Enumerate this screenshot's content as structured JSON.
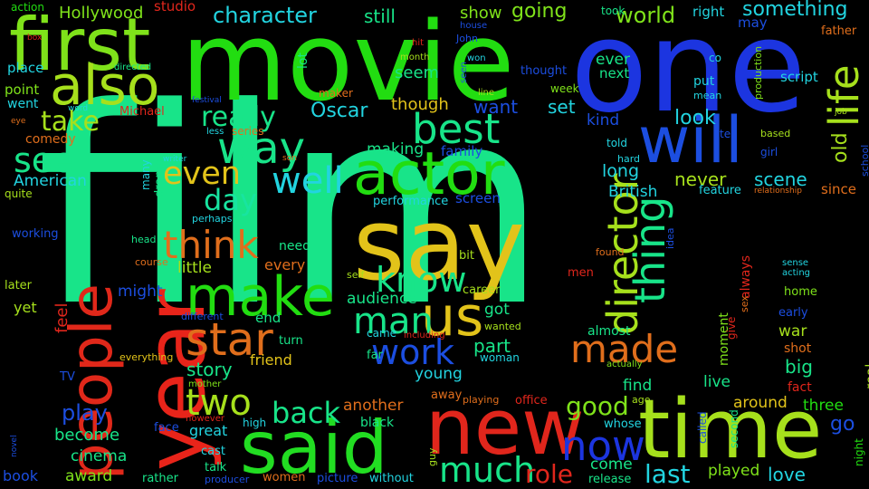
{
  "words": {
    "film": {
      "text": "film",
      "color": "#18e489"
    },
    "movie": {
      "text": "movie",
      "color": "#22dd11"
    },
    "one": {
      "text": "one",
      "color": "#1c35e0"
    },
    "first": {
      "text": "first",
      "color": "#7fe21a"
    },
    "also": {
      "text": "also",
      "color": "#a6e01c"
    },
    "year": {
      "text": "year",
      "color": "#e8241a"
    },
    "people": {
      "text": "people",
      "color": "#e0281a"
    },
    "say": {
      "text": "say",
      "color": "#e2c31a"
    },
    "said": {
      "text": "said",
      "color": "#22dd22"
    },
    "new": {
      "text": "new",
      "color": "#e0261c"
    },
    "time": {
      "text": "time",
      "color": "#a6e01c"
    },
    "will": {
      "text": "will",
      "color": "#1c4ee0"
    },
    "actor": {
      "text": "actor",
      "color": "#22dd11"
    },
    "best": {
      "text": "best",
      "color": "#18e489"
    },
    "make": {
      "text": "make",
      "color": "#22dd11"
    },
    "us": {
      "text": "us",
      "color": "#e2c31a"
    },
    "star": {
      "text": "star",
      "color": "#e06e1c"
    },
    "director": {
      "text": "director",
      "color": "#a6e01c"
    },
    "thing": {
      "text": "thing",
      "color": "#18e489"
    },
    "life": {
      "text": "life",
      "color": "#a6e01c"
    },
    "way": {
      "text": "way",
      "color": "#18e489"
    },
    "well": {
      "text": "well",
      "color": "#22d4e0"
    },
    "even": {
      "text": "even",
      "color": "#e2c31a"
    },
    "day": {
      "text": "day",
      "color": "#18e4a0"
    },
    "think": {
      "text": "think",
      "color": "#e06e1c"
    },
    "know": {
      "text": "know",
      "color": "#18e489"
    },
    "man": {
      "text": "man",
      "color": "#18e489"
    },
    "work": {
      "text": "work",
      "color": "#1c4ee0"
    },
    "made": {
      "text": "made",
      "color": "#e06e1c"
    },
    "two": {
      "text": "two",
      "color": "#a6e01c"
    },
    "back": {
      "text": "back",
      "color": "#18e489"
    },
    "now": {
      "text": "now",
      "color": "#1c35e0"
    },
    "much": {
      "text": "much",
      "color": "#18e489"
    },
    "role": {
      "text": "role",
      "color": "#e0261c"
    },
    "good": {
      "text": "good",
      "color": "#7fe21a"
    },
    "last": {
      "text": "last",
      "color": "#22d4e0"
    },
    "take": {
      "text": "take",
      "color": "#a6e01c"
    },
    "see": {
      "text": "see",
      "color": "#18e489"
    },
    "character": {
      "text": "character",
      "color": "#22d4e0"
    },
    "really": {
      "text": "really",
      "color": "#18e489"
    },
    "world": {
      "text": "world",
      "color": "#7fe21a"
    },
    "something": {
      "text": "something",
      "color": "#22d4e0"
    },
    "going": {
      "text": "going",
      "color": "#7fe21a"
    },
    "show": {
      "text": "show",
      "color": "#7fe21a"
    },
    "still": {
      "text": "still",
      "color": "#18e489"
    },
    "Hollywood": {
      "text": "Hollywood",
      "color": "#7fe21a"
    },
    "studio": {
      "text": "studio",
      "color": "#e0261c"
    },
    "action": {
      "text": "action",
      "color": "#22dd11"
    },
    "right": {
      "text": "right",
      "color": "#22d4e0"
    },
    "took": {
      "text": "took",
      "color": "#18e489"
    },
    "Oscar": {
      "text": "Oscar",
      "color": "#22d4e0"
    },
    "though": {
      "text": "though",
      "color": "#e2c31a"
    },
    "want": {
      "text": "want",
      "color": "#1c4ee0"
    },
    "set": {
      "text": "set",
      "color": "#22d4e0"
    },
    "seem": {
      "text": "seem",
      "color": "#18e489"
    },
    "look": {
      "text": "look",
      "color": "#22d4e0"
    },
    "kind": {
      "text": "kind",
      "color": "#1c4ee0"
    },
    "ever": {
      "text": "ever",
      "color": "#18e489"
    },
    "next": {
      "text": "next",
      "color": "#18e489"
    },
    "script": {
      "text": "script",
      "color": "#22d4e0"
    },
    "old": {
      "text": "old",
      "color": "#a6e01c"
    },
    "never": {
      "text": "never",
      "color": "#a6e01c"
    },
    "scene": {
      "text": "scene",
      "color": "#22d4e0"
    },
    "long": {
      "text": "long",
      "color": "#22d4e0"
    },
    "British": {
      "text": "British",
      "color": "#22d4e0"
    },
    "since": {
      "text": "since",
      "color": "#e06e1c"
    },
    "feature": {
      "text": "feature",
      "color": "#22d4e0"
    },
    "making": {
      "text": "making",
      "color": "#18e489"
    },
    "family": {
      "text": "family",
      "color": "#1c4ee0"
    },
    "performance": {
      "text": "performance",
      "color": "#22d4e0"
    },
    "screen": {
      "text": "screen",
      "color": "#1c4ee0"
    },
    "American": {
      "text": "American",
      "color": "#22d4e0"
    },
    "quite": {
      "text": "quite",
      "color": "#a6e01c"
    },
    "comedy": {
      "text": "comedy",
      "color": "#e06e1c"
    },
    "Michael": {
      "text": "Michael",
      "color": "#e0261c"
    },
    "place": {
      "text": "place",
      "color": "#22d4e0"
    },
    "point": {
      "text": "point",
      "color": "#7fe21a"
    },
    "went": {
      "text": "went",
      "color": "#22d4e0"
    },
    "working": {
      "text": "working",
      "color": "#1c4ee0"
    },
    "later": {
      "text": "later",
      "color": "#a6e01c"
    },
    "yet": {
      "text": "yet",
      "color": "#a6e01c"
    },
    "feel": {
      "text": "feel",
      "color": "#e0261c"
    },
    "TV": {
      "text": "TV",
      "color": "#1c4ee0"
    },
    "play": {
      "text": "play",
      "color": "#1c4ee0"
    },
    "become": {
      "text": "become",
      "color": "#18e489"
    },
    "cinema": {
      "text": "cinema",
      "color": "#18e489"
    },
    "book": {
      "text": "book",
      "color": "#1c4ee0"
    },
    "award": {
      "text": "award",
      "color": "#7fe21a"
    },
    "rather": {
      "text": "rather",
      "color": "#18e489"
    },
    "great": {
      "text": "great",
      "color": "#22d4e0"
    },
    "cast": {
      "text": "cast",
      "color": "#22d4e0"
    },
    "talk": {
      "text": "talk",
      "color": "#18e489"
    },
    "producer": {
      "text": "producer",
      "color": "#1c4ee0"
    },
    "women": {
      "text": "women",
      "color": "#e06e1c"
    },
    "picture": {
      "text": "picture",
      "color": "#1c4ee0"
    },
    "without": {
      "text": "without",
      "color": "#22d4e0"
    },
    "story": {
      "text": "story",
      "color": "#18e489"
    },
    "friend": {
      "text": "friend",
      "color": "#e2c31a"
    },
    "turn": {
      "text": "turn",
      "color": "#18e489"
    },
    "end": {
      "text": "end",
      "color": "#18e489"
    },
    "little": {
      "text": "little",
      "color": "#a6e01c"
    },
    "every": {
      "text": "every",
      "color": "#e06e1c"
    },
    "need": {
      "text": "need",
      "color": "#18e489"
    },
    "might": {
      "text": "might",
      "color": "#1c4ee0"
    },
    "different": {
      "text": "different",
      "color": "#1c4ee0"
    },
    "course": {
      "text": "course",
      "color": "#e06e1c"
    },
    "head": {
      "text": "head",
      "color": "#18e489"
    },
    "perhaps": {
      "text": "perhaps",
      "color": "#22d4e0"
    },
    "everything": {
      "text": "everything",
      "color": "#e2c31a"
    },
    "mother": {
      "text": "mother",
      "color": "#7fe21a"
    },
    "however": {
      "text": "however",
      "color": "#e0261c"
    },
    "high": {
      "text": "high",
      "color": "#22d4e0"
    },
    "face": {
      "text": "face",
      "color": "#1c4ee0"
    },
    "another": {
      "text": "another",
      "color": "#e06e1c"
    },
    "black": {
      "text": "black",
      "color": "#18e489"
    },
    "away": {
      "text": "away",
      "color": "#e06e1c"
    },
    "playing": {
      "text": "playing",
      "color": "#e06e1c"
    },
    "office": {
      "text": "office",
      "color": "#e0261c"
    },
    "young": {
      "text": "young",
      "color": "#22d4e0"
    },
    "far": {
      "text": "far",
      "color": "#18e489"
    },
    "woman": {
      "text": "woman",
      "color": "#22d4e0"
    },
    "part": {
      "text": "part",
      "color": "#18e489"
    },
    "got": {
      "text": "got",
      "color": "#18e489"
    },
    "wanted": {
      "text": "wanted",
      "color": "#a6e01c"
    },
    "came": {
      "text": "came",
      "color": "#22d4e0"
    },
    "including": {
      "text": "including",
      "color": "#e0261c"
    },
    "audience": {
      "text": "audience",
      "color": "#18e489"
    },
    "career": {
      "text": "career",
      "color": "#a6e01c"
    },
    "bit": {
      "text": "bit",
      "color": "#a6e01c"
    },
    "self": {
      "text": "self",
      "color": "#a6e01c"
    },
    "men": {
      "text": "men",
      "color": "#e0261c"
    },
    "found": {
      "text": "found",
      "color": "#e06e1c"
    },
    "almost": {
      "text": "almost",
      "color": "#18e489"
    },
    "actually": {
      "text": "actually",
      "color": "#7fe21a"
    },
    "find": {
      "text": "find",
      "color": "#18e489"
    },
    "age": {
      "text": "age",
      "color": "#a6e01c"
    },
    "whose": {
      "text": "whose",
      "color": "#22d4e0"
    },
    "come": {
      "text": "come",
      "color": "#18e489"
    },
    "release": {
      "text": "release",
      "color": "#18e489"
    },
    "guy": {
      "text": "guy",
      "color": "#a6e01c"
    },
    "played": {
      "text": "played",
      "color": "#7fe21a"
    },
    "love": {
      "text": "love",
      "color": "#22d4e0"
    },
    "go": {
      "text": "go",
      "color": "#1c4ee0"
    },
    "three": {
      "text": "three",
      "color": "#22dd11"
    },
    "around": {
      "text": "around",
      "color": "#e2c31a"
    },
    "fact": {
      "text": "fact",
      "color": "#e0261c"
    },
    "big": {
      "text": "big",
      "color": "#18e489"
    },
    "shot": {
      "text": "shot",
      "color": "#e06e1c"
    },
    "war": {
      "text": "war",
      "color": "#a6e01c"
    },
    "early": {
      "text": "early",
      "color": "#1c4ee0"
    },
    "home": {
      "text": "home",
      "color": "#7fe21a"
    },
    "acting": {
      "text": "acting",
      "color": "#22d4e0"
    },
    "sense": {
      "text": "sense",
      "color": "#22d4e0"
    },
    "live": {
      "text": "live",
      "color": "#18e489"
    },
    "real": {
      "text": "real",
      "color": "#a6e01c"
    },
    "night": {
      "text": "night",
      "color": "#22dd11"
    },
    "moment": {
      "text": "moment",
      "color": "#7fe21a"
    },
    "always": {
      "text": "always",
      "color": "#e0261c"
    },
    "give": {
      "text": "give",
      "color": "#e0261c"
    },
    "sex": {
      "text": "sex",
      "color": "#e06e1c"
    },
    "second": {
      "text": "second",
      "color": "#18e489"
    },
    "called": {
      "text": "called",
      "color": "#1c4ee0"
    },
    "idea": {
      "text": "idea",
      "color": "#1c4ee0"
    },
    "told": {
      "text": "told",
      "color": "#22d4e0"
    },
    "hard": {
      "text": "hard",
      "color": "#22d4e0"
    },
    "tell": {
      "text": "tell",
      "color": "#1c4ee0"
    },
    "based": {
      "text": "based",
      "color": "#a6e01c"
    },
    "girl": {
      "text": "girl",
      "color": "#1c4ee0"
    },
    "relationship": {
      "text": "relationship",
      "color": "#e06e1c"
    },
    "school": {
      "text": "school",
      "color": "#1c4ee0"
    },
    "job": {
      "text": "job",
      "color": "#a6e01c"
    },
    "father": {
      "text": "father",
      "color": "#e06e1c"
    },
    "may": {
      "text": "may",
      "color": "#1c4ee0"
    },
    "co": {
      "text": "co",
      "color": "#22d4e0"
    },
    "put": {
      "text": "put",
      "color": "#22d4e0"
    },
    "mean": {
      "text": "mean",
      "color": "#22d4e0"
    },
    "production": {
      "text": "production",
      "color": "#7fe21a"
    },
    "week": {
      "text": "week",
      "color": "#7fe21a"
    },
    "thought": {
      "text": "thought",
      "color": "#1c4ee0"
    },
    "line": {
      "text": "line",
      "color": "#a6e01c"
    },
    "month": {
      "text": "month",
      "color": "#a6e01c"
    },
    "won": {
      "text": "won",
      "color": "#22d4e0"
    },
    "John": {
      "text": "John",
      "color": "#1c4ee0"
    },
    "house": {
      "text": "house",
      "color": "#1c4ee0"
    },
    "hit": {
      "text": "hit",
      "color": "#e0261c"
    },
    "seen": {
      "text": "seen",
      "color": "#1c4ee0"
    },
    "lot": {
      "text": "lot",
      "color": "#18e489"
    },
    "maker": {
      "text": "maker",
      "color": "#e06e1c"
    },
    "festival": {
      "text": "festival",
      "color": "#1c4ee0"
    },
    "word": {
      "text": "word",
      "color": "#22d4e0"
    },
    "eye": {
      "text": "eye",
      "color": "#e06e1c"
    },
    "directed": {
      "text": "directed",
      "color": "#18e489"
    },
    "box": {
      "text": "box",
      "color": "#e0261c"
    },
    "less": {
      "text": "less",
      "color": "#22d4e0"
    },
    "series": {
      "text": "series",
      "color": "#e06e1c"
    },
    "son": {
      "text": "son",
      "color": "#e06e1c"
    },
    "writer": {
      "text": "writer",
      "color": "#22d4e0"
    },
    "many": {
      "text": "many",
      "color": "#22d4e0"
    },
    "drama": {
      "text": "drama",
      "color": "#18e489"
    },
    "novel": {
      "text": "novel",
      "color": "#1c4ee0"
    }
  }
}
